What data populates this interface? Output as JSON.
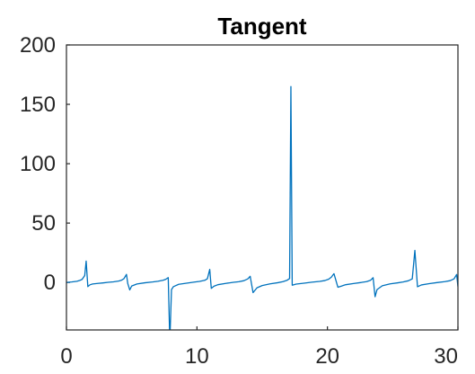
{
  "chart_data": {
    "type": "line",
    "title": "Tangent",
    "xlabel": "",
    "ylabel": "",
    "xlim": [
      0,
      30
    ],
    "ylim": [
      -40,
      200
    ],
    "xticks": [
      0,
      10,
      20,
      30
    ],
    "yticks": [
      0,
      50,
      100,
      150,
      200
    ],
    "grid": false,
    "series_color": "#0072BD",
    "series": [
      {
        "function": "tan(x)",
        "x": [
          0.0,
          0.2,
          0.4,
          0.6,
          0.8,
          1.0,
          1.2,
          1.4,
          1.51,
          1.64,
          1.8,
          2.0,
          2.4,
          2.8,
          3.2,
          3.6,
          4.0,
          4.2,
          4.4,
          4.6,
          4.7,
          4.85,
          5.0,
          5.4,
          6.0,
          6.6,
          7.0,
          7.4,
          7.6,
          7.8,
          7.9,
          7.95,
          8.05,
          8.2,
          8.6,
          9.2,
          9.8,
          10.2,
          10.6,
          10.8,
          10.98,
          11.1,
          11.3,
          11.6,
          12.2,
          12.8,
          13.2,
          13.6,
          13.9,
          14.08,
          14.3,
          14.6,
          15.0,
          15.6,
          16.2,
          16.6,
          16.9,
          17.1,
          17.2,
          17.3,
          17.6,
          18.2,
          18.8,
          19.4,
          19.8,
          20.1,
          20.3,
          20.5,
          20.8,
          21.4,
          22.0,
          22.6,
          23.0,
          23.3,
          23.5,
          23.65,
          23.8,
          24.2,
          24.8,
          25.4,
          25.8,
          26.2,
          26.5,
          26.7,
          26.9,
          27.2,
          27.8,
          28.4,
          29.0,
          29.4,
          29.7,
          29.9,
          30.0
        ],
        "y": [
          0.0,
          0.2,
          0.4,
          0.7,
          1.0,
          1.6,
          2.6,
          5.8,
          18.0,
          -3.5,
          -2.0,
          -1.3,
          -0.8,
          -0.4,
          0.1,
          0.5,
          1.2,
          1.8,
          3.1,
          6.8,
          -1.0,
          -6.3,
          -3.0,
          -1.3,
          -0.3,
          0.4,
          1.0,
          1.8,
          2.6,
          4.1,
          -40.0,
          -40.0,
          -6.0,
          -3.5,
          -1.6,
          -0.6,
          0.3,
          0.9,
          1.8,
          3.1,
          11.0,
          -5.0,
          -3.2,
          -1.9,
          -0.8,
          0.1,
          0.6,
          1.5,
          3.0,
          5.2,
          -8.6,
          -4.5,
          -2.6,
          -1.2,
          -0.2,
          0.7,
          1.8,
          3.3,
          165.0,
          -2.3,
          -1.4,
          -0.6,
          0.2,
          0.9,
          1.6,
          2.8,
          4.5,
          7.4,
          -4.0,
          -1.9,
          -0.9,
          0.0,
          0.7,
          1.8,
          4.0,
          -12.0,
          -6.0,
          -2.8,
          -1.2,
          -0.3,
          0.4,
          1.4,
          3.0,
          27.0,
          -3.6,
          -2.1,
          -1.0,
          -0.1,
          0.7,
          1.5,
          3.0,
          6.7,
          -3.5
        ]
      }
    ]
  }
}
